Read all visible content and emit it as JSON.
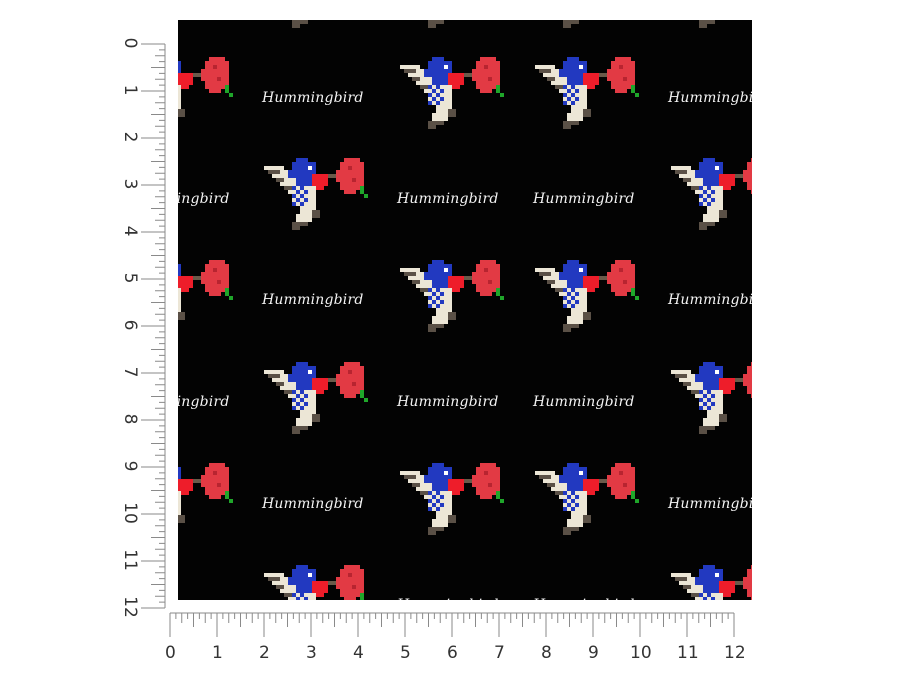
{
  "pattern": {
    "word": "Hummingbird",
    "background_color": "#030303",
    "text_color": "#f4f4f4",
    "colors": {
      "bird_blue": "#2239c0",
      "bird_light": "#ece6d6",
      "bird_dark": "#5a5046",
      "flower_red": "#e23a44",
      "bird_red": "#ee1d2a",
      "stem_green": "#1fa62a"
    }
  },
  "rulers": {
    "unit_labels": [
      "0",
      "1",
      "2",
      "3",
      "4",
      "5",
      "6",
      "7",
      "8",
      "9",
      "10",
      "11",
      "12"
    ]
  }
}
